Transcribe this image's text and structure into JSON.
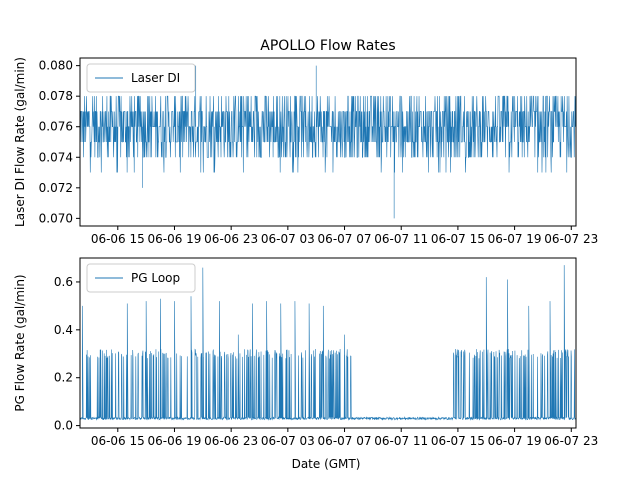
{
  "figure": {
    "title": "APOLLO Flow Rates",
    "xlabel": "Date (GMT)"
  },
  "colors": {
    "series": "#1f77b4",
    "axis": "#000000"
  },
  "chart_data": [
    {
      "type": "line",
      "ylabel": "Laser DI Flow Rate (gal/min)",
      "legend": {
        "entries": [
          "Laser DI"
        ],
        "placement": "top-left"
      },
      "xlim": [
        "2022-06-06 12:20",
        "2022-06-07 23:20"
      ],
      "x_tick_labels": [
        "06-06 15",
        "06-06 19",
        "06-06 23",
        "06-07 03",
        "06-07 07",
        "06-07 11",
        "06-07 15",
        "06-07 19",
        "06-07 23"
      ],
      "x_tick_times": [
        "2022-06-06 15:00",
        "2022-06-06 19:00",
        "2022-06-06 23:00",
        "2022-06-07 03:00",
        "2022-06-07 07:00",
        "2022-06-07 11:00",
        "2022-06-07 15:00",
        "2022-06-07 19:00",
        "2022-06-07 23:00"
      ],
      "ylim": [
        0.0695,
        0.0805
      ],
      "y_ticks": [
        0.07,
        0.072,
        0.074,
        0.076,
        0.078,
        0.08
      ],
      "y_tick_labels": [
        "0.070",
        "0.072",
        "0.074",
        "0.076",
        "0.078",
        "0.080"
      ],
      "series": [
        {
          "name": "Laser DI",
          "x": [
            "2022-06-06 12:20",
            "2022-06-06 15:00",
            "2022-06-06 16:45",
            "2022-06-06 19:00",
            "2022-06-06 20:30",
            "2022-06-06 23:00",
            "2022-06-07 03:00",
            "2022-06-07 05:00",
            "2022-06-07 07:00",
            "2022-06-07 10:30",
            "2022-06-07 15:00",
            "2022-06-07 19:00",
            "2022-06-07 23:20"
          ],
          "values": [
            0.076,
            0.075,
            0.072,
            0.078,
            0.08,
            0.076,
            0.076,
            0.08,
            0.075,
            0.07,
            0.076,
            0.076,
            0.075
          ],
          "typical_range": [
            0.074,
            0.078
          ],
          "mean": 0.076
        }
      ]
    },
    {
      "type": "line",
      "ylabel": "PG Flow Rate (gal/min)",
      "legend": {
        "entries": [
          "PG Loop"
        ],
        "placement": "top-left"
      },
      "xlim": [
        "2022-06-06 12:20",
        "2022-06-07 23:20"
      ],
      "x_tick_labels": [
        "06-06 15",
        "06-06 19",
        "06-06 23",
        "06-07 03",
        "06-07 07",
        "06-07 11",
        "06-07 15",
        "06-07 19",
        "06-07 23"
      ],
      "x_tick_times": [
        "2022-06-06 15:00",
        "2022-06-06 19:00",
        "2022-06-06 23:00",
        "2022-06-07 03:00",
        "2022-06-07 07:00",
        "2022-06-07 11:00",
        "2022-06-07 15:00",
        "2022-06-07 19:00",
        "2022-06-07 23:00"
      ],
      "ylim": [
        -0.01,
        0.7
      ],
      "y_ticks": [
        0.0,
        0.2,
        0.4,
        0.6
      ],
      "y_tick_labels": [
        "0.0",
        "0.2",
        "0.4",
        "0.6"
      ],
      "series": [
        {
          "name": "PG Loop",
          "baseline": 0.03,
          "pulse_times": [
            "2022-06-06 12:30",
            "2022-06-06 15:40",
            "2022-06-06 17:00",
            "2022-06-06 18:00",
            "2022-06-06 19:00",
            "2022-06-06 20:10",
            "2022-06-06 21:00",
            "2022-06-06 22:10",
            "2022-06-06 23:30",
            "2022-06-07 00:30",
            "2022-06-07 01:30",
            "2022-06-07 02:30",
            "2022-06-07 03:30",
            "2022-06-07 04:30",
            "2022-06-07 05:30",
            "2022-06-07 07:00",
            "2022-06-07 14:50",
            "2022-06-07 17:00",
            "2022-06-07 18:30",
            "2022-06-07 20:00",
            "2022-06-07 21:30",
            "2022-06-07 22:30"
          ],
          "pulse_values": [
            0.5,
            0.51,
            0.52,
            0.53,
            0.52,
            0.54,
            0.66,
            0.52,
            0.38,
            0.51,
            0.52,
            0.51,
            0.52,
            0.51,
            0.5,
            0.38,
            0.32,
            0.62,
            0.61,
            0.5,
            0.52,
            0.67
          ],
          "typical_pulse": 0.3
        }
      ]
    }
  ]
}
